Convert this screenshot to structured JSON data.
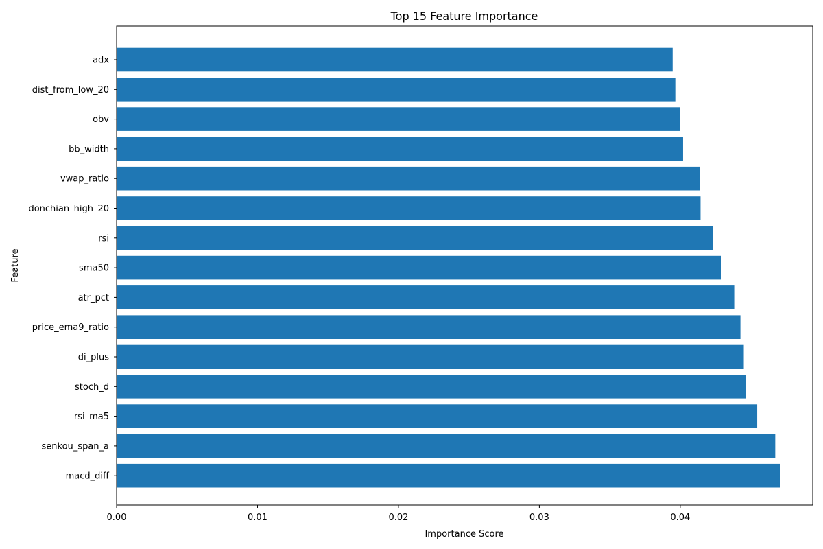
{
  "chart_data": {
    "type": "bar",
    "orientation": "horizontal",
    "title": "Top 15 Feature Importance",
    "xlabel": "Importance Score",
    "ylabel": "Feature",
    "categories": [
      "adx",
      "dist_from_low_20",
      "obv",
      "bb_width",
      "vwap_ratio",
      "donchian_high_20",
      "rsi",
      "sma50",
      "atr_pct",
      "price_ema9_ratio",
      "di_plus",
      "stoch_d",
      "rsi_ma5",
      "senkou_span_a",
      "macd_diff"
    ],
    "values": [
      0.03946,
      0.03965,
      0.04,
      0.0402,
      0.04141,
      0.04144,
      0.04233,
      0.04291,
      0.04383,
      0.04427,
      0.04451,
      0.04463,
      0.04546,
      0.04674,
      0.04708
    ],
    "xlim": [
      0,
      0.0494
    ],
    "xticks": [
      0.0,
      0.01,
      0.02,
      0.03,
      0.04
    ],
    "xtick_labels": [
      "0.00",
      "0.01",
      "0.02",
      "0.03",
      "0.04"
    ],
    "bar_color": "#1f77b4",
    "grid": false,
    "legend": false
  }
}
